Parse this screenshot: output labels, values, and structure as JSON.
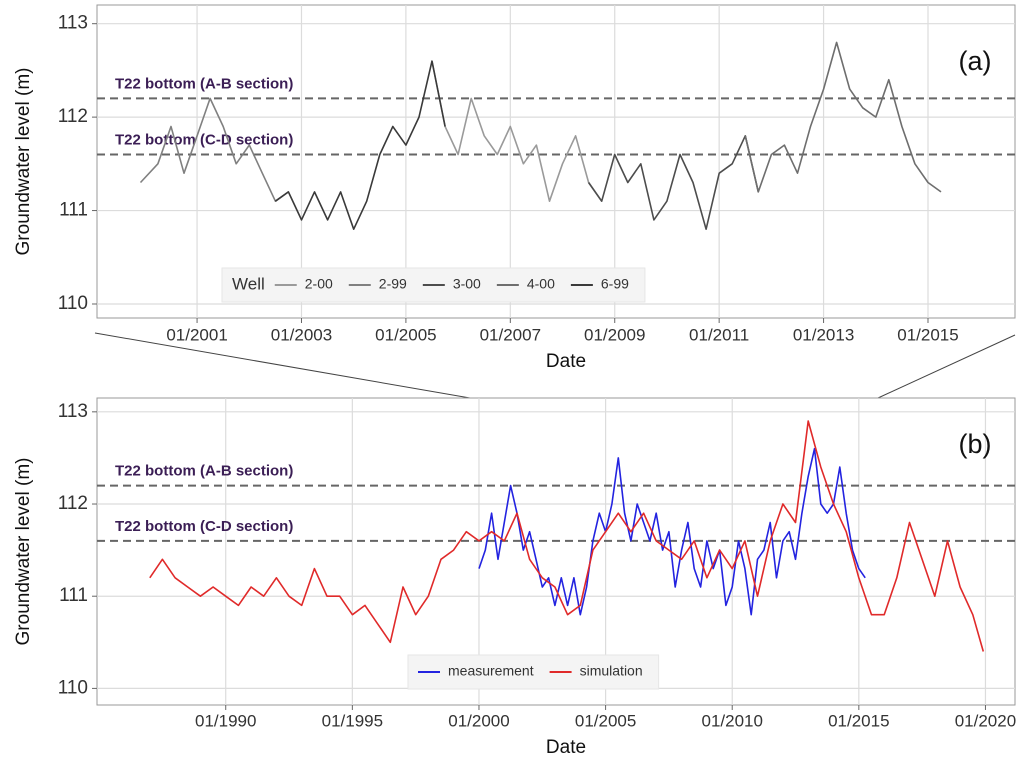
{
  "chart_data": [
    {
      "type": "line",
      "panel_label": "(a)",
      "xlabel": "Date",
      "ylabel": "Groundwater level (m)",
      "xlim": [
        "02/1999",
        "09/2016"
      ],
      "xticks": [
        "01/2001",
        "01/2003",
        "01/2005",
        "01/2007",
        "01/2009",
        "01/2011",
        "01/2013",
        "01/2015"
      ],
      "ylim": [
        109.85,
        113.2
      ],
      "yticks": [
        110,
        111,
        112,
        113
      ],
      "grid": true,
      "hlines": [
        {
          "value": 112.2,
          "label": "T22 bottom (A-B section)"
        },
        {
          "value": 111.6,
          "label": "T22 bottom (C-D section)"
        }
      ],
      "legend_title": "Well",
      "legend_position": "bottom",
      "series": [
        {
          "name": "2-00",
          "color": "#9a9a9a",
          "x": [
            "07/2005",
            "10/2005",
            "01/2006",
            "04/2006",
            "07/2006",
            "10/2006",
            "01/2007",
            "04/2007",
            "07/2007",
            "10/2007",
            "01/2008",
            "04/2008",
            "07/2008",
            "10/2008"
          ],
          "values": [
            112.6,
            111.9,
            111.6,
            112.2,
            111.8,
            111.6,
            111.9,
            111.5,
            111.7,
            111.1,
            111.5,
            111.8,
            111.3,
            111.1
          ]
        },
        {
          "name": "2-99",
          "color": "#808080",
          "x": [
            "12/1999",
            "04/2000",
            "07/2000",
            "10/2000",
            "01/2001",
            "04/2001",
            "07/2001",
            "10/2001",
            "01/2002",
            "04/2002",
            "07/2002",
            "10/2002"
          ],
          "values": [
            111.3,
            111.5,
            111.9,
            111.4,
            111.8,
            112.2,
            111.9,
            111.5,
            111.7,
            111.4,
            111.1,
            111.2
          ]
        },
        {
          "name": "3-00",
          "color": "#4d4d4d",
          "x": [
            "07/2008",
            "10/2008",
            "01/2009",
            "04/2009",
            "07/2009",
            "10/2009",
            "01/2010",
            "04/2010",
            "07/2010",
            "10/2010",
            "01/2011",
            "04/2011",
            "07/2011",
            "10/2011"
          ],
          "values": [
            111.3,
            111.1,
            111.6,
            111.3,
            111.5,
            110.9,
            111.1,
            111.6,
            111.3,
            110.8,
            111.4,
            111.5,
            111.8,
            111.2
          ]
        },
        {
          "name": "4-00",
          "color": "#6e6e6e",
          "x": [
            "07/2011",
            "10/2011",
            "01/2012",
            "04/2012",
            "07/2012",
            "10/2012",
            "01/2013",
            "04/2013",
            "07/2013",
            "10/2013",
            "01/2014",
            "04/2014",
            "07/2014",
            "10/2014",
            "01/2015",
            "04/2015"
          ],
          "values": [
            111.8,
            111.2,
            111.6,
            111.7,
            111.4,
            111.9,
            112.3,
            112.8,
            112.3,
            112.1,
            112.0,
            112.4,
            111.9,
            111.5,
            111.3,
            111.2
          ]
        },
        {
          "name": "6-99",
          "color": "#3a3a3a",
          "x": [
            "07/2002",
            "10/2002",
            "01/2003",
            "04/2003",
            "07/2003",
            "10/2003",
            "01/2004",
            "04/2004",
            "07/2004",
            "10/2004",
            "01/2005",
            "04/2005",
            "07/2005",
            "10/2005"
          ],
          "values": [
            111.1,
            111.2,
            110.9,
            111.2,
            110.9,
            111.2,
            110.8,
            111.1,
            111.6,
            111.9,
            111.7,
            112.0,
            112.6,
            111.9
          ]
        }
      ]
    },
    {
      "type": "line",
      "panel_label": "(b)",
      "xlabel": "Date",
      "ylabel": "Groundwater level (m)",
      "xlim": [
        "12/1984",
        "03/2021"
      ],
      "xticks": [
        "01/1990",
        "01/1995",
        "01/2000",
        "01/2005",
        "01/2010",
        "01/2015",
        "01/2020"
      ],
      "ylim": [
        109.82,
        113.15
      ],
      "yticks": [
        110,
        111,
        112,
        113
      ],
      "grid": true,
      "hlines": [
        {
          "value": 112.2,
          "label": "T22 bottom (A-B section)"
        },
        {
          "value": 111.6,
          "label": "T22 bottom (C-D section)"
        }
      ],
      "legend_position": "bottom",
      "series": [
        {
          "name": "measurement",
          "color": "#2323e0",
          "x": [
            "01/2000",
            "04/2000",
            "07/2000",
            "10/2000",
            "01/2001",
            "04/2001",
            "07/2001",
            "10/2001",
            "01/2002",
            "04/2002",
            "07/2002",
            "10/2002",
            "01/2003",
            "04/2003",
            "07/2003",
            "10/2003",
            "01/2004",
            "04/2004",
            "07/2004",
            "10/2004",
            "01/2005",
            "04/2005",
            "07/2005",
            "10/2005",
            "01/2006",
            "04/2006",
            "07/2006",
            "10/2006",
            "01/2007",
            "04/2007",
            "07/2007",
            "10/2007",
            "01/2008",
            "04/2008",
            "07/2008",
            "10/2008",
            "01/2009",
            "04/2009",
            "07/2009",
            "10/2009",
            "01/2010",
            "04/2010",
            "07/2010",
            "10/2010",
            "01/2011",
            "04/2011",
            "07/2011",
            "10/2011",
            "01/2012",
            "04/2012",
            "07/2012",
            "10/2012",
            "01/2013",
            "04/2013",
            "07/2013",
            "10/2013",
            "01/2014",
            "04/2014",
            "07/2014",
            "10/2014",
            "01/2015",
            "04/2015"
          ],
          "values": [
            111.3,
            111.5,
            111.9,
            111.4,
            111.8,
            112.2,
            111.9,
            111.5,
            111.7,
            111.4,
            111.1,
            111.2,
            110.9,
            111.2,
            110.9,
            111.2,
            110.8,
            111.1,
            111.6,
            111.9,
            111.7,
            112.0,
            112.5,
            111.9,
            111.6,
            112.0,
            111.8,
            111.6,
            111.9,
            111.5,
            111.7,
            111.1,
            111.5,
            111.8,
            111.3,
            111.1,
            111.6,
            111.3,
            111.5,
            110.9,
            111.1,
            111.6,
            111.3,
            110.8,
            111.4,
            111.5,
            111.8,
            111.2,
            111.6,
            111.7,
            111.4,
            111.9,
            112.3,
            112.6,
            112.0,
            111.9,
            112.0,
            112.4,
            111.9,
            111.5,
            111.3,
            111.2
          ]
        },
        {
          "name": "simulation",
          "color": "#e02a2a",
          "x": [
            "01/1987",
            "07/1987",
            "01/1988",
            "07/1988",
            "01/1989",
            "07/1989",
            "01/1990",
            "07/1990",
            "01/1991",
            "07/1991",
            "01/1992",
            "07/1992",
            "01/1993",
            "07/1993",
            "01/1994",
            "07/1994",
            "01/1995",
            "07/1995",
            "01/1996",
            "07/1996",
            "01/1997",
            "07/1997",
            "01/1998",
            "07/1998",
            "01/1999",
            "07/1999",
            "01/2000",
            "07/2000",
            "01/2001",
            "07/2001",
            "01/2002",
            "07/2002",
            "01/2003",
            "07/2003",
            "01/2004",
            "07/2004",
            "01/2005",
            "07/2005",
            "01/2006",
            "07/2006",
            "01/2007",
            "07/2007",
            "01/2008",
            "07/2008",
            "01/2009",
            "07/2009",
            "01/2010",
            "07/2010",
            "01/2011",
            "07/2011",
            "01/2012",
            "07/2012",
            "01/2013",
            "07/2013",
            "01/2014",
            "07/2014",
            "01/2015",
            "07/2015",
            "01/2016",
            "07/2016",
            "01/2017",
            "07/2017",
            "01/2018",
            "07/2018",
            "01/2019",
            "07/2019",
            "12/2019"
          ],
          "values": [
            111.2,
            111.4,
            111.2,
            111.1,
            111.0,
            111.1,
            111.0,
            110.9,
            111.1,
            111.0,
            111.2,
            111.0,
            110.9,
            111.3,
            111.0,
            111.0,
            110.8,
            110.9,
            110.7,
            110.5,
            111.1,
            110.8,
            111.0,
            111.4,
            111.5,
            111.7,
            111.6,
            111.7,
            111.6,
            111.9,
            111.4,
            111.2,
            111.1,
            110.8,
            110.9,
            111.5,
            111.7,
            111.9,
            111.7,
            111.9,
            111.6,
            111.5,
            111.4,
            111.6,
            111.2,
            111.5,
            111.3,
            111.6,
            111.0,
            111.6,
            112.0,
            111.8,
            112.9,
            112.4,
            112.0,
            111.7,
            111.2,
            110.8,
            110.8,
            111.2,
            111.8,
            111.4,
            111.0,
            111.6,
            111.1,
            110.8,
            110.4
          ]
        }
      ]
    }
  ]
}
